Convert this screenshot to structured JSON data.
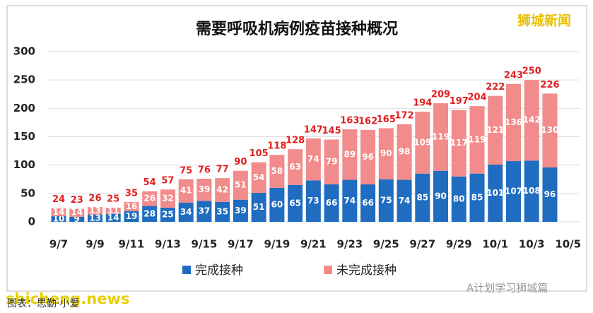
{
  "chart_data": {
    "type": "stacked-bar",
    "title": "需要呼吸机病例疫苗接种概况",
    "categories": [
      "9/7",
      null,
      "9/9",
      null,
      "9/11",
      null,
      "9/13",
      null,
      "9/15",
      null,
      "9/17",
      null,
      "9/19",
      null,
      "9/21",
      null,
      "9/23",
      null,
      "9/25",
      null,
      "9/27",
      null,
      "9/29",
      null,
      "10/1",
      null,
      "10/3",
      null,
      "10/5"
    ],
    "series": [
      {
        "name": "完成接种",
        "color": "#1f6cc0",
        "values": [
          10,
          9,
          13,
          14,
          19,
          28,
          25,
          34,
          37,
          35,
          39,
          51,
          60,
          65,
          73,
          66,
          74,
          66,
          75,
          74,
          85,
          90,
          80,
          85,
          101,
          107,
          108,
          96,
          null
        ]
      },
      {
        "name": "未完成接种",
        "color": "#f28b8b",
        "values": [
          14,
          14,
          13,
          11,
          16,
          26,
          32,
          41,
          39,
          42,
          51,
          54,
          58,
          63,
          74,
          79,
          89,
          96,
          90,
          98,
          109,
          119,
          117,
          119,
          121,
          136,
          142,
          130,
          null
        ]
      }
    ],
    "totals": [
      24,
      23,
      26,
      25,
      35,
      54,
      57,
      75,
      76,
      77,
      90,
      105,
      118,
      128,
      147,
      145,
      163,
      162,
      165,
      172,
      194,
      209,
      197,
      204,
      222,
      243,
      250,
      226,
      null
    ],
    "ylim": [
      0,
      300
    ],
    "yticks": [
      0,
      50,
      100,
      150,
      200,
      250,
      300
    ],
    "grid": true,
    "legend": "bottom"
  },
  "watermarks": [
    "狮城新闻",
    "shicheng.news",
    "A计划学习狮城篇"
  ],
  "caption": "图表：思勤·小爱"
}
